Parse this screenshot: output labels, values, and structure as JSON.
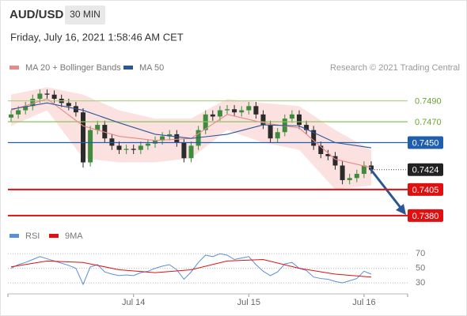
{
  "header": {
    "symbol": "AUD/USD",
    "interval": "30 MIN",
    "timestamp": "Friday, July 16, 2021 1:58:46 AM CET",
    "credit": "Research © 2021 Trading Central"
  },
  "chart_data": [
    {
      "type": "candlestick",
      "categories": [
        null,
        null,
        null,
        null,
        null,
        null,
        null,
        null,
        null,
        null,
        null,
        null,
        null,
        null,
        null,
        null,
        null,
        "Jul 14",
        null,
        null,
        null,
        null,
        null,
        null,
        null,
        null,
        null,
        null,
        null,
        null,
        null,
        null,
        null,
        "Jul 15",
        null,
        null,
        null,
        null,
        null,
        null,
        null,
        null,
        null,
        null,
        null,
        null,
        null,
        null,
        null,
        "Jul 16",
        null
      ],
      "open": [
        0.7474,
        0.7477,
        0.7481,
        0.7485,
        0.7492,
        0.7497,
        0.7496,
        0.7492,
        0.7488,
        0.7485,
        0.7479,
        0.7431,
        0.7462,
        0.7467,
        0.7454,
        0.7447,
        0.7443,
        0.7444,
        0.7443,
        0.7447,
        0.7449,
        0.7452,
        0.7456,
        0.7458,
        0.745,
        0.7435,
        0.7447,
        0.7462,
        0.7477,
        0.7475,
        0.7481,
        0.7482,
        0.7479,
        0.7481,
        0.7485,
        0.7477,
        0.7467,
        0.7454,
        0.746,
        0.7473,
        0.7477,
        0.7467,
        0.7462,
        0.7447,
        0.7439,
        0.7437,
        0.7428,
        0.7414,
        0.7416,
        0.742,
        0.7428
      ],
      "high": [
        0.7481,
        0.7485,
        0.7489,
        0.7496,
        0.7501,
        0.7501,
        0.75,
        0.7496,
        0.7492,
        0.7489,
        0.7483,
        0.7466,
        0.7471,
        0.7471,
        0.7458,
        0.7451,
        0.7448,
        0.7448,
        0.7451,
        0.7453,
        0.7456,
        0.746,
        0.7462,
        0.7462,
        0.7454,
        0.7451,
        0.7466,
        0.7481,
        0.7481,
        0.7485,
        0.7486,
        0.7486,
        0.7485,
        0.7489,
        0.7489,
        0.7481,
        0.7471,
        0.7464,
        0.7477,
        0.7481,
        0.7481,
        0.7471,
        0.7466,
        0.7451,
        0.7443,
        0.7441,
        0.7432,
        0.742,
        0.7424,
        0.7432,
        0.7432
      ],
      "low": [
        0.747,
        0.7473,
        0.7477,
        0.7481,
        0.7488,
        0.7492,
        0.7488,
        0.7484,
        0.7481,
        0.7475,
        0.7426,
        0.7427,
        0.7458,
        0.745,
        0.7443,
        0.7439,
        0.7439,
        0.7439,
        0.7439,
        0.7443,
        0.7445,
        0.7448,
        0.7452,
        0.7446,
        0.7431,
        0.7431,
        0.7443,
        0.7458,
        0.7471,
        0.7471,
        0.7477,
        0.7475,
        0.7475,
        0.7477,
        0.7473,
        0.7463,
        0.745,
        0.745,
        0.7456,
        0.7469,
        0.7463,
        0.7458,
        0.7443,
        0.7435,
        0.7433,
        0.7424,
        0.741,
        0.741,
        0.7412,
        0.7416,
        0.742
      ],
      "close": [
        0.7477,
        0.7481,
        0.7485,
        0.7492,
        0.7497,
        0.7496,
        0.7492,
        0.7488,
        0.7485,
        0.7479,
        0.7431,
        0.7462,
        0.7467,
        0.7454,
        0.7447,
        0.7443,
        0.7444,
        0.7443,
        0.7447,
        0.7449,
        0.7452,
        0.7456,
        0.7458,
        0.745,
        0.7435,
        0.7447,
        0.7462,
        0.7477,
        0.7475,
        0.7481,
        0.7482,
        0.7479,
        0.7481,
        0.7485,
        0.7477,
        0.7467,
        0.7454,
        0.746,
        0.7473,
        0.7477,
        0.7467,
        0.7462,
        0.7447,
        0.7439,
        0.7437,
        0.7428,
        0.7414,
        0.7416,
        0.742,
        0.7428,
        0.7424
      ],
      "up_color": "#3c8c3c",
      "down_color": "#2b2b2b",
      "ylim": [
        0.7367,
        0.7511
      ],
      "series": [
        {
          "name": "MA 20 + Bollinger Bands",
          "color": "#e98a8a",
          "band_color": "#fbdada",
          "x": [
            0,
            5,
            10,
            15,
            20,
            25,
            30,
            35,
            40,
            45,
            50
          ],
          "values": [
            0.7481,
            0.7492,
            0.7466,
            0.7456,
            0.7452,
            0.7454,
            0.7477,
            0.7469,
            0.7464,
            0.7434,
            0.7426
          ],
          "upper": [
            0.7496,
            0.7503,
            0.7496,
            0.7481,
            0.7473,
            0.7473,
            0.7492,
            0.7488,
            0.7485,
            0.7462,
            0.7443
          ],
          "lower": [
            0.7466,
            0.7481,
            0.7435,
            0.7431,
            0.7431,
            0.7435,
            0.7462,
            0.745,
            0.7443,
            0.7405,
            0.7409
          ]
        },
        {
          "name": "MA 50",
          "color": "#2b5797",
          "x": [
            0,
            5,
            10,
            15,
            20,
            25,
            30,
            35,
            40,
            45,
            50
          ],
          "values": [
            0.7482,
            0.7488,
            0.7481,
            0.7469,
            0.7458,
            0.7454,
            0.7458,
            0.7467,
            0.7466,
            0.745,
            0.7445
          ]
        }
      ],
      "levels": [
        {
          "value": 0.749,
          "label": "0.7490",
          "color": "#a8d07a",
          "boxed": false,
          "text_color": "#6aa332"
        },
        {
          "value": 0.747,
          "label": "0.7470",
          "color": "#8cc45a",
          "boxed": false,
          "text_color": "#6aa332"
        },
        {
          "value": 0.745,
          "label": "0.7450",
          "color": "#1f5fae",
          "boxed": true,
          "text_color": "#ffffff"
        },
        {
          "value": 0.7405,
          "label": "0.7405",
          "color": "#e01010",
          "boxed": true,
          "text_color": "#ffffff"
        },
        {
          "value": 0.738,
          "label": "0.7380",
          "color": "#e01010",
          "boxed": true,
          "text_color": "#ffffff"
        }
      ],
      "last_price": {
        "value": 0.7424,
        "label": "0.7424",
        "color": "#222222"
      }
    },
    {
      "type": "line",
      "ylim": [
        15,
        82
      ],
      "yticks": [
        70,
        50,
        30
      ],
      "series": [
        {
          "name": "RSI",
          "color": "#5b8fd6",
          "x": [
            0,
            1,
            2,
            3,
            4,
            5,
            6,
            7,
            8,
            9,
            10,
            11,
            12,
            13,
            14,
            15,
            16,
            17,
            18,
            19,
            20,
            21,
            22,
            23,
            24,
            25,
            26,
            27,
            28,
            29,
            30,
            31,
            32,
            33,
            34,
            35,
            36,
            37,
            38,
            39,
            40,
            41,
            42,
            43,
            44,
            45,
            46,
            47,
            48,
            49,
            50
          ],
          "values": [
            50,
            55,
            58,
            62,
            66,
            63,
            60,
            57,
            54,
            50,
            28,
            52,
            55,
            45,
            42,
            40,
            41,
            40,
            44,
            46,
            50,
            53,
            55,
            48,
            35,
            45,
            58,
            68,
            66,
            70,
            68,
            62,
            64,
            66,
            55,
            46,
            40,
            45,
            56,
            58,
            50,
            47,
            38,
            36,
            35,
            32,
            30,
            33,
            36,
            46,
            42
          ]
        },
        {
          "name": "9MA",
          "color": "#e01010",
          "x": [
            0,
            5,
            10,
            15,
            20,
            25,
            30,
            35,
            40,
            45,
            50
          ],
          "values": [
            52,
            60,
            58,
            48,
            44,
            48,
            60,
            62,
            50,
            42,
            38
          ]
        }
      ]
    }
  ]
}
